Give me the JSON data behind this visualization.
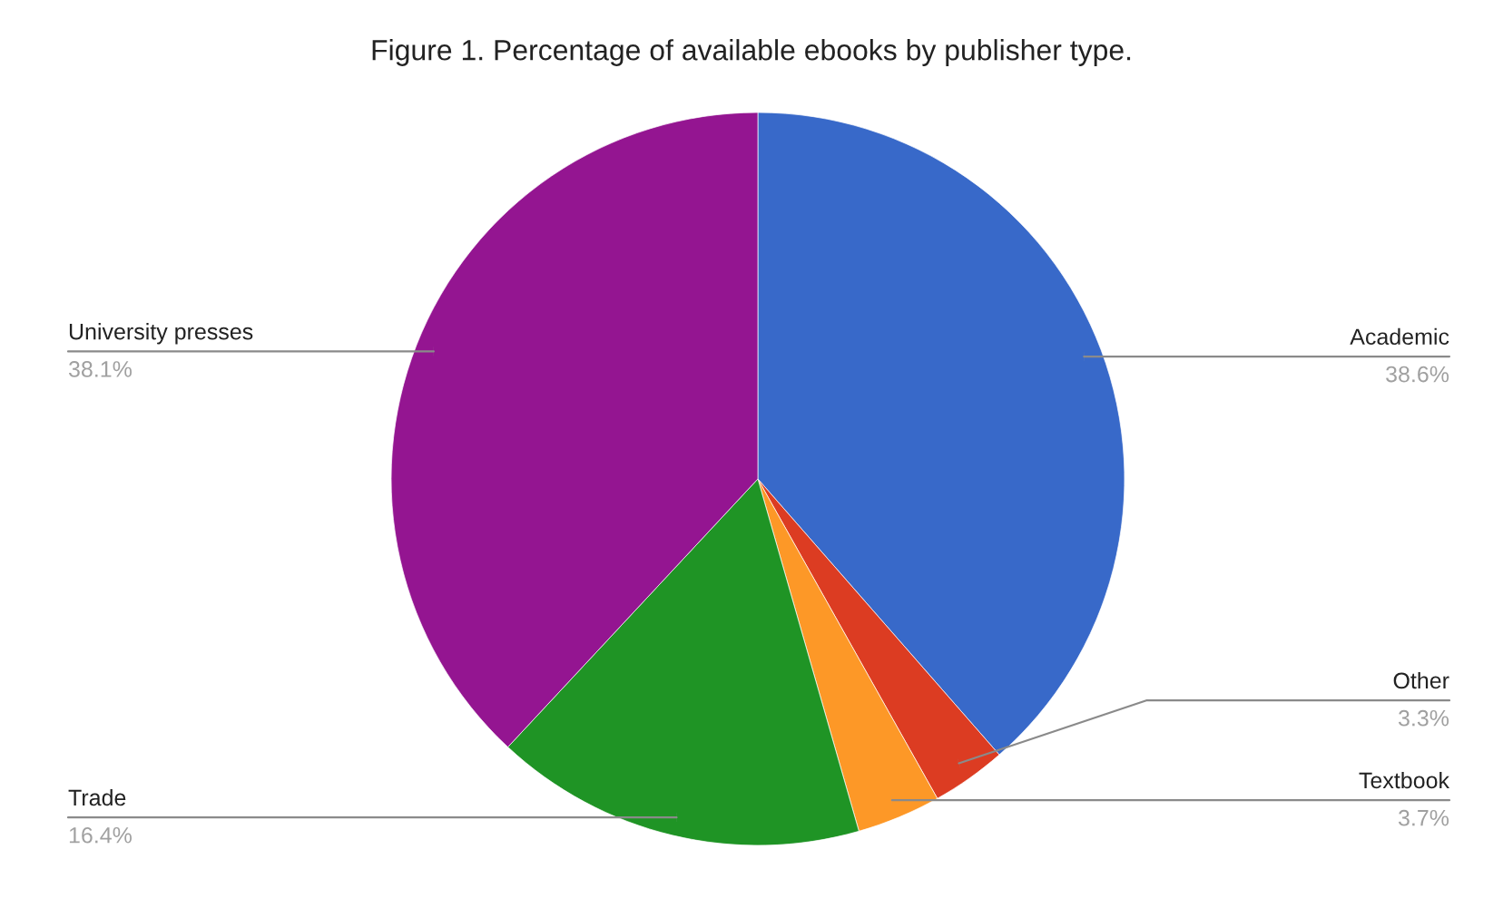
{
  "chart_data": {
    "type": "pie",
    "title": "Figure 1. Percentage of available ebooks by publisher type.",
    "categories": [
      "Academic",
      "Other",
      "Textbook",
      "Trade",
      "University presses"
    ],
    "values": [
      38.6,
      3.3,
      3.7,
      16.4,
      38.1
    ],
    "colors": [
      "#3869c9",
      "#dc3c22",
      "#fd9827",
      "#1f9425",
      "#941591"
    ],
    "value_labels": [
      "38.6%",
      "3.3%",
      "3.7%",
      "16.4%",
      "38.1%"
    ]
  }
}
